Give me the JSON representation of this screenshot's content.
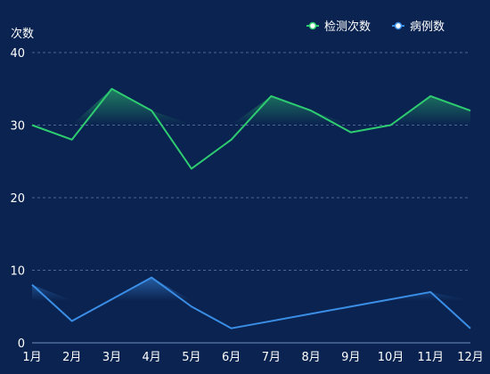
{
  "chart_data": {
    "type": "line",
    "ylabel": "次数",
    "categories": [
      "1月",
      "2月",
      "3月",
      "4月",
      "5月",
      "6月",
      "7月",
      "8月",
      "9月",
      "10月",
      "11月",
      "12月"
    ],
    "ylim": [
      0,
      40
    ],
    "yticks": [
      0,
      10,
      20,
      30,
      40
    ],
    "grid": true,
    "legend_position": "top-right",
    "series": [
      {
        "name": "检测次数",
        "color": "#2ecc71",
        "values": [
          30,
          28,
          35,
          32,
          24,
          28,
          34,
          32,
          29,
          30,
          34,
          32
        ]
      },
      {
        "name": "病例数",
        "color": "#3a8ee6",
        "values": [
          8,
          3,
          6,
          9,
          5,
          2,
          3,
          4,
          5,
          6,
          7,
          2
        ]
      }
    ]
  }
}
